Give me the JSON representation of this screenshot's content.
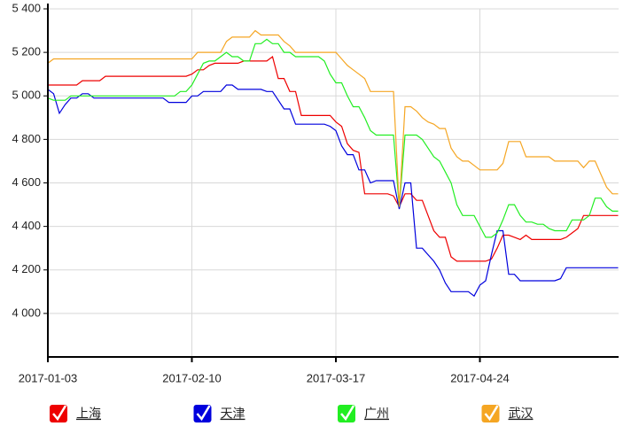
{
  "chart_data": {
    "type": "line",
    "categories": [
      "2017-01-03",
      null,
      null,
      null,
      null,
      null,
      null,
      null,
      null,
      null,
      null,
      null,
      null,
      null,
      null,
      null,
      null,
      null,
      null,
      null,
      null,
      null,
      null,
      null,
      null,
      "2017-02-10",
      null,
      null,
      null,
      null,
      null,
      null,
      null,
      null,
      null,
      null,
      null,
      null,
      null,
      null,
      null,
      null,
      null,
      null,
      null,
      null,
      null,
      null,
      null,
      null,
      "2017-03-17",
      null,
      null,
      null,
      null,
      null,
      null,
      null,
      null,
      null,
      null,
      null,
      null,
      null,
      null,
      null,
      null,
      null,
      null,
      null,
      null,
      null,
      null,
      null,
      null,
      "2017-04-24",
      null,
      null,
      null,
      null,
      null,
      null,
      null,
      null,
      null,
      null,
      null,
      null,
      null,
      null,
      null,
      null,
      null,
      null,
      null,
      null,
      null,
      null,
      null,
      null
    ],
    "series": [
      {
        "name": "上海",
        "color": "#ee0000",
        "values": [
          5050,
          5050,
          5050,
          5050,
          5050,
          5050,
          5070,
          5070,
          5070,
          5070,
          5090,
          5090,
          5090,
          5090,
          5090,
          5090,
          5090,
          5090,
          5090,
          5090,
          5090,
          5090,
          5090,
          5090,
          5090,
          5100,
          5120,
          5120,
          5140,
          5150,
          5150,
          5150,
          5150,
          5150,
          5160,
          5160,
          5160,
          5160,
          5160,
          5180,
          5080,
          5080,
          5020,
          5020,
          4910,
          4910,
          4910,
          4910,
          4910,
          4910,
          4880,
          4860,
          4780,
          4750,
          4740,
          4550,
          4550,
          4550,
          4550,
          4550,
          4540,
          4490,
          4550,
          4550,
          4520,
          4520,
          4450,
          4380,
          4350,
          4350,
          4260,
          4240,
          4240,
          4240,
          4240,
          4240,
          4240,
          4250,
          4300,
          4360,
          4360,
          4350,
          4340,
          4360,
          4340,
          4340,
          4340,
          4340,
          4340,
          4340,
          4350,
          4370,
          4390,
          4450,
          4450,
          4450,
          4450,
          4450,
          4450,
          4450
        ]
      },
      {
        "name": "天津",
        "color": "#0000dd",
        "values": [
          5030,
          5010,
          4920,
          4960,
          4990,
          4990,
          5010,
          5010,
          4990,
          4990,
          4990,
          4990,
          4990,
          4990,
          4990,
          4990,
          4990,
          4990,
          4990,
          4990,
          4990,
          4970,
          4970,
          4970,
          4970,
          5000,
          5000,
          5020,
          5020,
          5020,
          5020,
          5050,
          5050,
          5030,
          5030,
          5030,
          5030,
          5030,
          5020,
          5020,
          4980,
          4940,
          4940,
          4870,
          4870,
          4870,
          4870,
          4870,
          4870,
          4860,
          4840,
          4770,
          4730,
          4730,
          4660,
          4660,
          4600,
          4610,
          4610,
          4610,
          4610,
          4480,
          4600,
          4600,
          4300,
          4300,
          4270,
          4240,
          4200,
          4140,
          4100,
          4100,
          4100,
          4100,
          4080,
          4130,
          4150,
          4270,
          4380,
          4380,
          4180,
          4180,
          4150,
          4150,
          4150,
          4150,
          4150,
          4150,
          4150,
          4160,
          4210,
          4210,
          4210,
          4210,
          4210,
          4210,
          4210,
          4210,
          4210,
          4210
        ]
      },
      {
        "name": "广州",
        "color": "#22ee22",
        "values": [
          4990,
          4980,
          4980,
          4980,
          5000,
          5000,
          5000,
          5000,
          5000,
          5000,
          5000,
          5000,
          5000,
          5000,
          5000,
          5000,
          5000,
          5000,
          5000,
          5000,
          5000,
          5000,
          5000,
          5020,
          5020,
          5050,
          5100,
          5150,
          5160,
          5160,
          5180,
          5200,
          5180,
          5180,
          5160,
          5160,
          5240,
          5240,
          5260,
          5240,
          5240,
          5200,
          5200,
          5180,
          5180,
          5180,
          5180,
          5180,
          5160,
          5100,
          5060,
          5060,
          5000,
          4950,
          4950,
          4900,
          4840,
          4820,
          4820,
          4820,
          4820,
          4490,
          4820,
          4820,
          4820,
          4800,
          4760,
          4720,
          4700,
          4650,
          4600,
          4500,
          4450,
          4450,
          4450,
          4400,
          4350,
          4350,
          4370,
          4430,
          4500,
          4500,
          4450,
          4420,
          4420,
          4410,
          4410,
          4390,
          4380,
          4380,
          4380,
          4430,
          4430,
          4430,
          4450,
          4530,
          4530,
          4490,
          4470,
          4470
        ]
      },
      {
        "name": "武汉",
        "color": "#f5a623",
        "values": [
          5150,
          5170,
          5170,
          5170,
          5170,
          5170,
          5170,
          5170,
          5170,
          5170,
          5170,
          5170,
          5170,
          5170,
          5170,
          5170,
          5170,
          5170,
          5170,
          5170,
          5170,
          5170,
          5170,
          5170,
          5170,
          5170,
          5200,
          5200,
          5200,
          5200,
          5200,
          5250,
          5270,
          5270,
          5270,
          5270,
          5300,
          5280,
          5280,
          5280,
          5280,
          5250,
          5230,
          5200,
          5200,
          5200,
          5200,
          5200,
          5200,
          5200,
          5200,
          5170,
          5140,
          5120,
          5100,
          5080,
          5020,
          5020,
          5020,
          5020,
          5020,
          4490,
          4950,
          4950,
          4930,
          4900,
          4880,
          4870,
          4850,
          4850,
          4760,
          4720,
          4700,
          4700,
          4680,
          4660,
          4660,
          4660,
          4660,
          4690,
          4790,
          4790,
          4790,
          4720,
          4720,
          4720,
          4720,
          4720,
          4700,
          4700,
          4700,
          4700,
          4700,
          4670,
          4700,
          4700,
          4640,
          4580,
          4550,
          4550
        ]
      }
    ],
    "ylim": [
      3800,
      5400
    ],
    "yticks": [
      {
        "value": 4000,
        "label": "4 000"
      },
      {
        "value": 4200,
        "label": "4 200"
      },
      {
        "value": 4400,
        "label": "4 400"
      },
      {
        "value": 4600,
        "label": "4 600"
      },
      {
        "value": 4800,
        "label": "4 800"
      },
      {
        "value": 5000,
        "label": "5 000"
      },
      {
        "value": 5200,
        "label": "5 200"
      },
      {
        "value": 5400,
        "label": "5 400"
      }
    ],
    "grid": true,
    "legend": "bottom"
  }
}
